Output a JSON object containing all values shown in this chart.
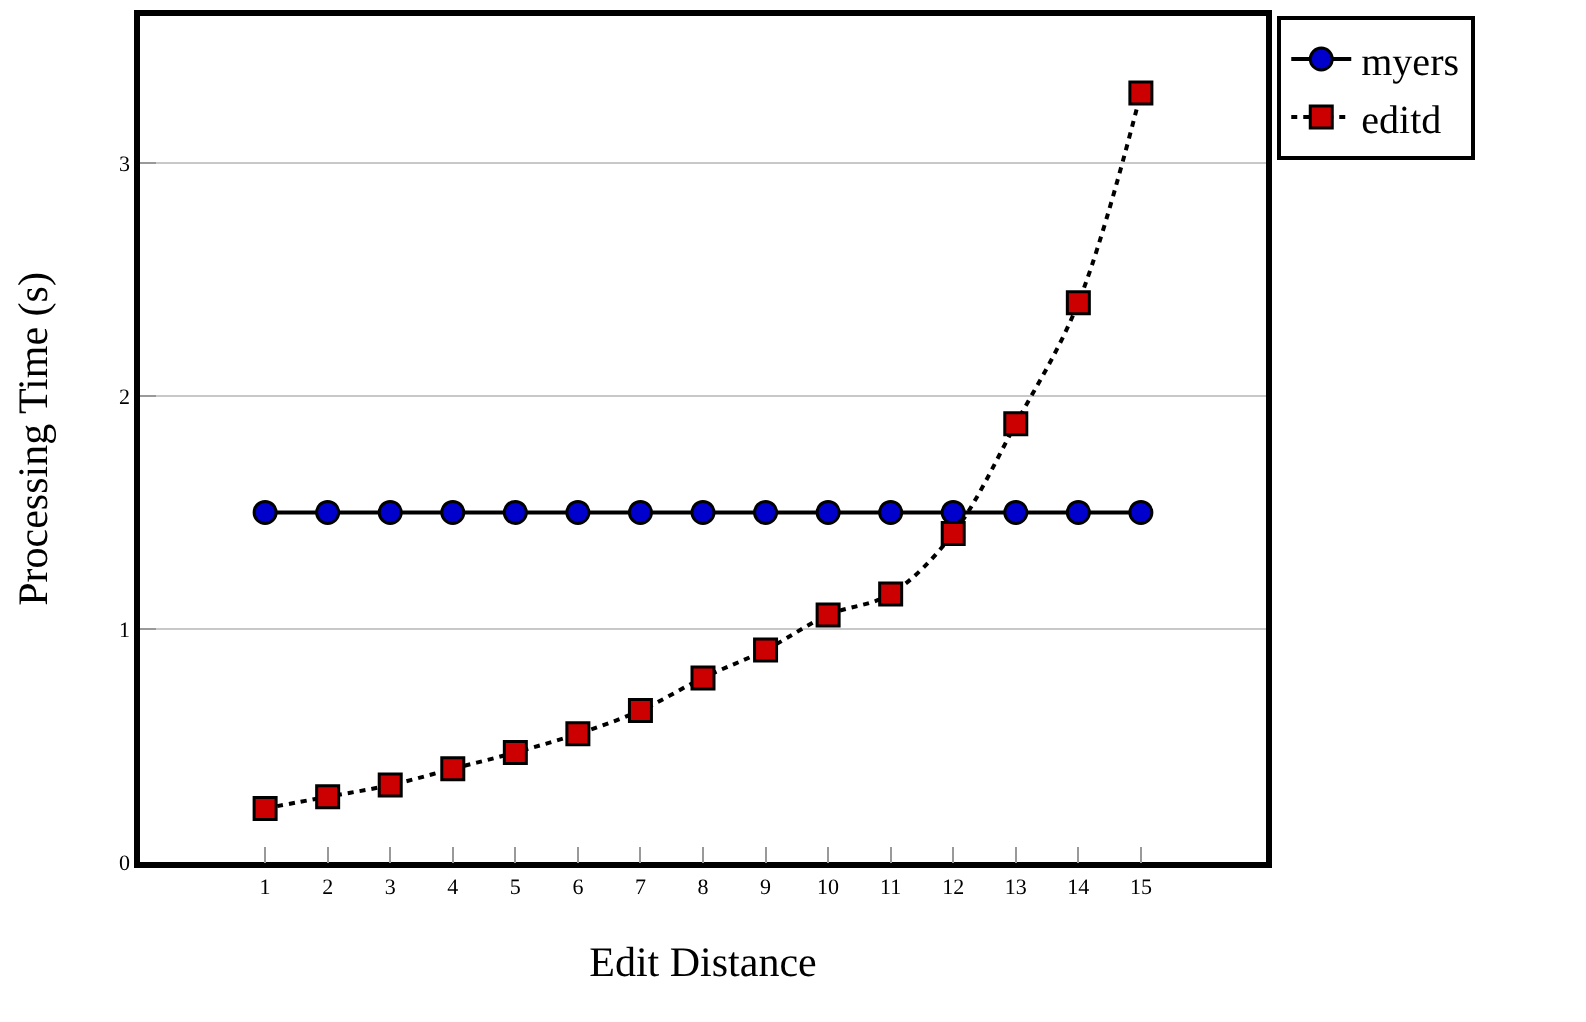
{
  "chart_data": {
    "type": "line",
    "xlabel": "Edit Distance",
    "ylabel": "Processing Time (s)",
    "x": [
      1,
      2,
      3,
      4,
      5,
      6,
      7,
      8,
      9,
      10,
      11,
      12,
      13,
      14,
      15
    ],
    "series": [
      {
        "name": "myers",
        "color": "#0000cc",
        "marker": "circle",
        "line_style": "solid",
        "values": [
          1.5,
          1.5,
          1.5,
          1.5,
          1.5,
          1.5,
          1.5,
          1.5,
          1.5,
          1.5,
          1.5,
          1.5,
          1.5,
          1.5,
          1.5
        ]
      },
      {
        "name": "editd",
        "color": "#cc0000",
        "marker": "square",
        "line_style": "dotted",
        "values": [
          0.23,
          0.28,
          0.33,
          0.4,
          0.47,
          0.55,
          0.65,
          0.79,
          0.91,
          1.06,
          1.15,
          1.41,
          1.88,
          2.4,
          3.3
        ]
      }
    ],
    "xlim": [
      -1,
      17
    ],
    "xticks": [
      1,
      2,
      3,
      4,
      5,
      6,
      7,
      8,
      9,
      10,
      11,
      12,
      13,
      14,
      15
    ],
    "ylim": [
      0,
      3.63
    ],
    "yticks": [
      0,
      1,
      2,
      3
    ],
    "grid": "y",
    "legend": "top right"
  }
}
